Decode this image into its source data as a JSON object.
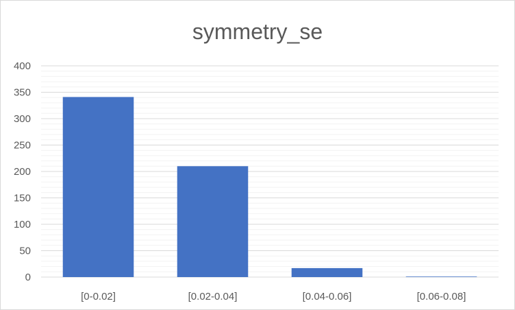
{
  "chart_data": {
    "type": "bar",
    "title": "symmetry_se",
    "xlabel": "",
    "ylabel": "",
    "categories": [
      "[0-0.02]",
      "[0.02-0.04]",
      "[0.04-0.06]",
      "[0.06-0.08]"
    ],
    "values": [
      341,
      210,
      17,
      1
    ],
    "ylim": [
      0,
      400
    ],
    "yticks": [
      0,
      50,
      100,
      150,
      200,
      250,
      300,
      350,
      400
    ],
    "minor_grid_step": 10,
    "grid": true,
    "legend": "none",
    "bar_color": "#4472C4",
    "grid_color": "#d9d9d9",
    "minor_grid_color": "#f2f2f2"
  }
}
